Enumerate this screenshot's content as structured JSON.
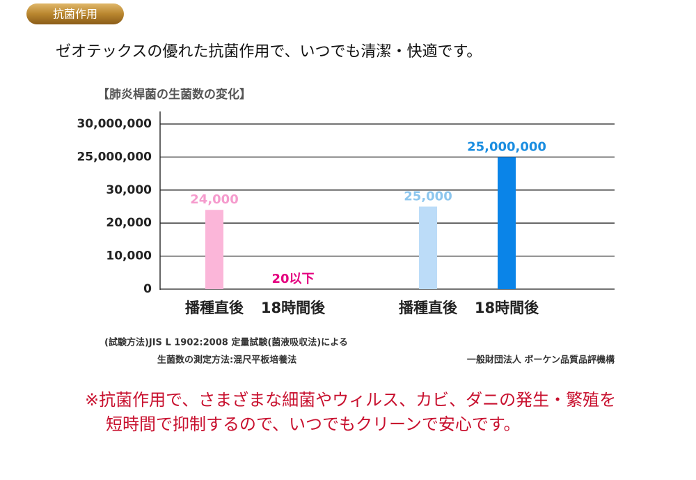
{
  "header": {
    "tab": "抗菌作用"
  },
  "intro": "ゼオテックスの優れた抗菌作用で、いつでも清潔・快適です。",
  "chart_data": {
    "type": "bar",
    "title": "【肺炎桿菌の生菌数の変化】",
    "categories": [
      "播種直後",
      "18時間後",
      "播種直後",
      "18時間後"
    ],
    "values": [
      24000,
      20,
      25000,
      25000000
    ],
    "value_labels": [
      "24,000",
      "20以下",
      "25,000",
      "25,000,000"
    ],
    "colors": [
      "#fbb6d9",
      "#e4007f",
      "#bcdcf8",
      "#0a84e8"
    ],
    "label_colors": [
      "#f59bcd",
      "#e4007f",
      "#8cc6ee",
      "#1a8de0"
    ],
    "ylim": [
      0,
      30000000
    ],
    "yticks": [
      0,
      {
        "value": 10000,
        "label": "10,000"
      },
      {
        "value": 20000,
        "label": "20,000"
      },
      {
        "value": 30000,
        "label": "30,000"
      },
      {
        "value": 25000000,
        "label": "25,000,000"
      },
      {
        "value": 30000000,
        "label": "30,000,000"
      }
    ],
    "grid": true
  },
  "notes": {
    "method1": "(試験方法)JIS L 1902:2008 定量試験(菌液吸収法)による",
    "method2": "生菌数の測定方法:混尺平板培養法",
    "org": "一般財団法人 ボーケン品質品評機構"
  },
  "footer": {
    "lines": [
      "※抗菌作用で、さまざまな細菌やウィルス、カビ、ダニの発生・繁殖を",
      "短時間で抑制するので、いつでもクリーンで安心です。"
    ]
  }
}
